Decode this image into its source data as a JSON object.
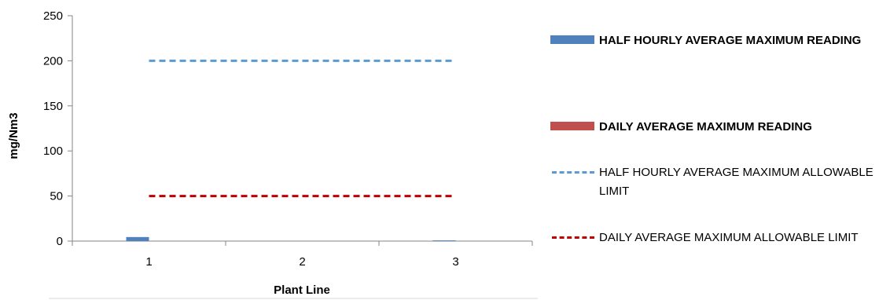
{
  "chart_data": {
    "type": "bar",
    "categories": [
      "1",
      "2",
      "3"
    ],
    "xlabel": "Plant Line",
    "ylabel": "mg/Nm3",
    "ylim": [
      0,
      250
    ],
    "yticks": [
      "0",
      "50",
      "100",
      "150",
      "200",
      "250"
    ],
    "series": [
      {
        "name": "HALF HOURLY AVERAGE MAXIMUM READING",
        "kind": "bar",
        "color": "#4f81bd",
        "values": [
          4.5,
          0,
          0.8
        ]
      },
      {
        "name": "DAILY AVERAGE MAXIMUM READING",
        "kind": "bar",
        "color": "#c0504d",
        "values": [
          0,
          0,
          0
        ]
      },
      {
        "name": "HALF HOURLY AVERAGE MAXIMUM ALLOWABLE LIMIT",
        "kind": "line",
        "dashed": true,
        "color": "#5b9bd5",
        "values": [
          200,
          200,
          200
        ]
      },
      {
        "name": "DAILY AVERAGE MAXIMUM ALLOWABLE LIMIT",
        "kind": "line",
        "dashed": true,
        "color": "#c00000",
        "values": [
          50,
          50,
          50
        ]
      }
    ],
    "grid": false,
    "legend_position": "right"
  }
}
